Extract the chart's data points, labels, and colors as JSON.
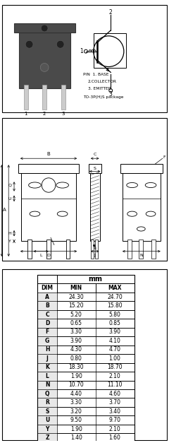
{
  "table_header": [
    "DIM",
    "MIN",
    "MAX"
  ],
  "mm_label": "mm",
  "table_data": [
    [
      "A",
      "24.30",
      "24.70"
    ],
    [
      "B",
      "15.20",
      "15.80"
    ],
    [
      "C",
      "5.20",
      "5.80"
    ],
    [
      "D",
      "0.65",
      "0.85"
    ],
    [
      "F",
      "3.30",
      "3.90"
    ],
    [
      "G",
      "3.90",
      "4.10"
    ],
    [
      "H",
      "4.30",
      "4.70"
    ],
    [
      "J",
      "0.80",
      "1.00"
    ],
    [
      "K",
      "18.30",
      "18.70"
    ],
    [
      "L",
      "1.90",
      "2.10"
    ],
    [
      "N",
      "10.70",
      "11.10"
    ],
    [
      "Q",
      "4.40",
      "4.60"
    ],
    [
      "R",
      "3.30",
      "3.70"
    ],
    [
      "S",
      "3.20",
      "3.40"
    ],
    [
      "U",
      "9.50",
      "9.70"
    ],
    [
      "Y",
      "1.90",
      "2.10"
    ],
    [
      "Z",
      "1.40",
      "1.60"
    ]
  ]
}
